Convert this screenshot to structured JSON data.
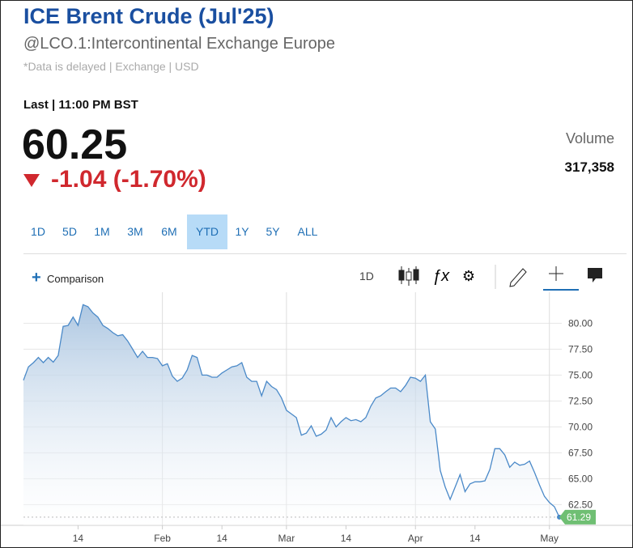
{
  "header": {
    "title": "ICE Brent Crude (Jul'25)",
    "symbol": "@LCO.1:Intercontinental Exchange Europe",
    "note": "*Data is delayed | Exchange | USD"
  },
  "quote": {
    "last_label": "Last | 11:00 PM BST",
    "price": "60.25",
    "change": "-1.04 (-1.70%)",
    "volume_label": "Volume",
    "volume": "317,358"
  },
  "tabs": [
    "1D",
    "5D",
    "1M",
    "3M",
    "6M",
    "YTD",
    "1Y",
    "5Y",
    "ALL"
  ],
  "active_tab": 5,
  "toolbar": {
    "comparison": "Comparison",
    "interval": "1D"
  },
  "chart_data": {
    "type": "area",
    "line_color": "#4a89c8",
    "fill_color": "#a9c4e0",
    "grid": true,
    "categories": [
      null,
      null,
      null,
      null,
      null,
      null,
      null,
      null,
      null,
      null,
      null,
      "14",
      null,
      null,
      null,
      null,
      null,
      null,
      null,
      null,
      null,
      null,
      null,
      null,
      null,
      null,
      null,
      null,
      "Feb",
      null,
      null,
      null,
      null,
      null,
      null,
      null,
      null,
      null,
      null,
      null,
      "14",
      null,
      null,
      null,
      null,
      null,
      null,
      null,
      null,
      null,
      null,
      null,
      null,
      "Mar",
      null,
      null,
      null,
      null,
      null,
      null,
      null,
      null,
      null,
      null,
      null,
      "14",
      null,
      null,
      null,
      null,
      null,
      null,
      null,
      null,
      null,
      null,
      null,
      null,
      null,
      "Apr",
      null,
      null,
      null,
      null,
      null,
      null,
      null,
      null,
      null,
      null,
      null,
      "14",
      null,
      null,
      null,
      null,
      null,
      null,
      null,
      null,
      null,
      null,
      null,
      null,
      null,
      null,
      "May",
      null,
      null
    ],
    "values": [
      74.5,
      75.8,
      76.2,
      76.7,
      76.2,
      76.7,
      76.25,
      76.9,
      79.7,
      79.8,
      80.6,
      79.8,
      81.8,
      81.6,
      81.0,
      80.6,
      79.8,
      79.5,
      79.1,
      78.8,
      78.9,
      78.3,
      77.5,
      76.7,
      77.3,
      76.7,
      76.7,
      76.6,
      75.9,
      76.1,
      74.9,
      74.4,
      74.7,
      75.5,
      76.9,
      76.7,
      75.0,
      75.0,
      74.8,
      74.8,
      75.2,
      75.5,
      75.8,
      75.9,
      76.2,
      74.8,
      74.4,
      74.4,
      73.0,
      74.4,
      73.9,
      73.6,
      72.8,
      71.6,
      71.25,
      70.9,
      69.2,
      69.4,
      70.1,
      69.1,
      69.3,
      69.7,
      70.9,
      70.0,
      70.5,
      70.9,
      70.6,
      70.7,
      70.5,
      70.9,
      72.0,
      72.8,
      73.0,
      73.4,
      73.75,
      73.75,
      73.4,
      74.0,
      74.8,
      74.7,
      74.4,
      75.0,
      70.5,
      69.8,
      65.8,
      64.2,
      63.0,
      64.2,
      65.4,
      63.75,
      64.5,
      64.7,
      64.7,
      64.8,
      65.9,
      67.9,
      67.9,
      67.3,
      66.1,
      66.6,
      66.3,
      66.4,
      66.7,
      65.6,
      64.4,
      63.3,
      62.7,
      62.3,
      61.29
    ],
    "ylim": [
      60.5,
      83
    ],
    "yticks": [
      {
        "value": 62.5,
        "label": "62.50"
      },
      {
        "value": 65,
        "label": "65.00"
      },
      {
        "value": 67.5,
        "label": "67.50"
      },
      {
        "value": 70,
        "label": "70.00"
      },
      {
        "value": 72.5,
        "label": "72.50"
      },
      {
        "value": 75,
        "label": "75.00"
      },
      {
        "value": 77.5,
        "label": "77.50"
      },
      {
        "value": 80,
        "label": "80.00"
      }
    ],
    "last_color": "#6fbf73"
  }
}
